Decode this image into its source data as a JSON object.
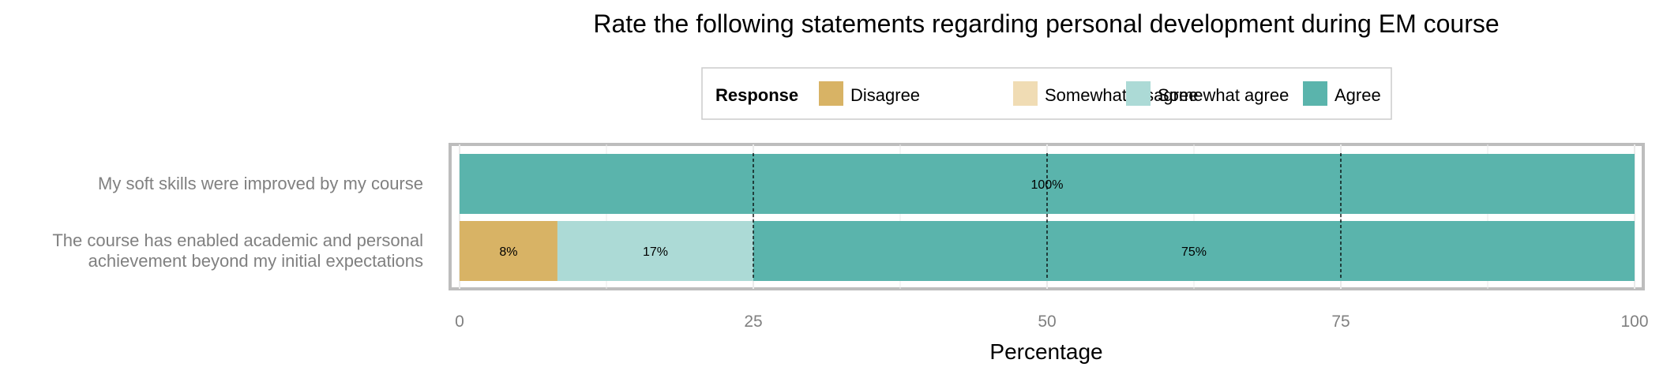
{
  "chart_data": {
    "type": "bar",
    "orientation": "horizontal",
    "stacked": true,
    "title": "Rate the following statements regarding personal development during EM course",
    "xlabel": "Percentage",
    "ylabel": "",
    "xlim": [
      0,
      100
    ],
    "xticks": [
      "0",
      "25",
      "50",
      "75",
      "100"
    ],
    "grid": true,
    "legend_position": "top",
    "legend": {
      "title": "Response",
      "items": [
        {
          "label": "Disagree",
          "color": "#d8b365"
        },
        {
          "label": "Somewhat disagree",
          "color": "#f0dcb4"
        },
        {
          "label": "Somewhat agree",
          "color": "#acdad6"
        },
        {
          "label": "Agree",
          "color": "#5ab4ac"
        }
      ]
    },
    "categories": [
      [
        "My soft skills were improved by my course"
      ],
      [
        "The course has enabled academic and personal",
        "achievement beyond my initial expectations"
      ]
    ],
    "series": [
      {
        "name": "Disagree",
        "values": [
          0,
          8.33
        ]
      },
      {
        "name": "Somewhat disagree",
        "values": [
          0,
          0
        ]
      },
      {
        "name": "Somewhat agree",
        "values": [
          0,
          16.67
        ]
      },
      {
        "name": "Agree",
        "values": [
          100,
          75
        ]
      }
    ],
    "data_labels": [
      [
        "",
        "",
        "",
        "100%"
      ],
      [
        "8%",
        "",
        "17%",
        "75%"
      ]
    ],
    "reference_lines": [
      25,
      50,
      75
    ]
  }
}
